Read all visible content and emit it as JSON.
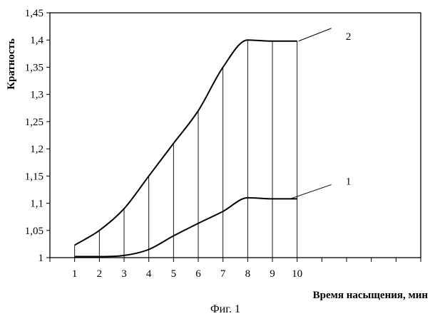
{
  "chart_data": {
    "type": "line",
    "title": "",
    "xlabel": "Время насыщения, мин",
    "ylabel": "Кратность",
    "caption": "Фиг. 1",
    "ylim": [
      1,
      1.45
    ],
    "xlim": [
      0,
      15
    ],
    "grid": false,
    "y_ticks": [
      "1",
      "1,05",
      "1,1",
      "1,15",
      "1,2",
      "1,25",
      "1,3",
      "1,35",
      "1,4",
      "1,45"
    ],
    "x_tick_labels": [
      "1",
      "2",
      "3",
      "4",
      "5",
      "6",
      "7",
      "8",
      "9",
      "10"
    ],
    "x": [
      1,
      2,
      3,
      4,
      5,
      6,
      7,
      8,
      9,
      10
    ],
    "series": [
      {
        "name": "1",
        "values": [
          1.002,
          1.002,
          1.004,
          1.015,
          1.04,
          1.063,
          1.085,
          1.11,
          1.108,
          1.108
        ]
      },
      {
        "name": "2",
        "values": [
          1.023,
          1.05,
          1.09,
          1.15,
          1.21,
          1.27,
          1.35,
          1.4,
          1.398,
          1.398
        ]
      }
    ]
  }
}
